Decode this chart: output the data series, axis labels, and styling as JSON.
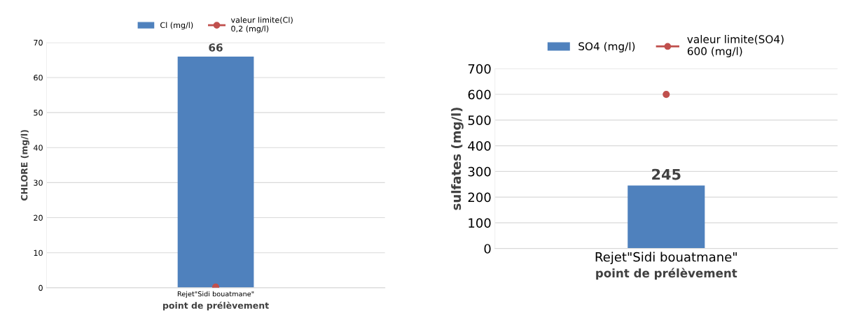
{
  "chart_data": [
    {
      "type": "bar",
      "categories": [
        "Rejet\"Sidi bouatmane\""
      ],
      "xlabel": "point de prélèvement",
      "ylabel": "CHLORE (mg/l)",
      "ylim": [
        0,
        70
      ],
      "yticks": [
        0,
        10,
        20,
        30,
        40,
        50,
        60,
        70
      ],
      "grid": "y",
      "legend": "top",
      "series": [
        {
          "name": "Cl (mg/l)",
          "color": "#4f81bd",
          "values": [
            66
          ],
          "value_labels": [
            "66"
          ]
        },
        {
          "name": "valeur limite(Cl)\n0,2 (mg/l)",
          "type": "scatter",
          "x": [
            "Rejet\"Sidi bouatmane\""
          ],
          "color": "#c0504d",
          "values": [
            0.2
          ],
          "marker": "circle"
        }
      ]
    },
    {
      "type": "bar",
      "categories": [
        "Rejet\"Sidi bouatmane\""
      ],
      "xlabel": "point de prélèvement",
      "ylabel": "sulfates (mg/l)",
      "ylim": [
        0,
        700
      ],
      "yticks": [
        0,
        100,
        200,
        300,
        400,
        500,
        600,
        700
      ],
      "grid": "y",
      "legend": "top",
      "series": [
        {
          "name": "SO4 (mg/l)",
          "color": "#4f81bd",
          "values": [
            245
          ],
          "value_labels": [
            "245"
          ]
        },
        {
          "name": "valeur limite(SO4)\n600 (mg/l)",
          "type": "scatter",
          "x": [
            "Rejet\"Sidi bouatmane\""
          ],
          "color": "#c0504d",
          "values": [
            600
          ],
          "marker": "circle"
        }
      ]
    }
  ]
}
